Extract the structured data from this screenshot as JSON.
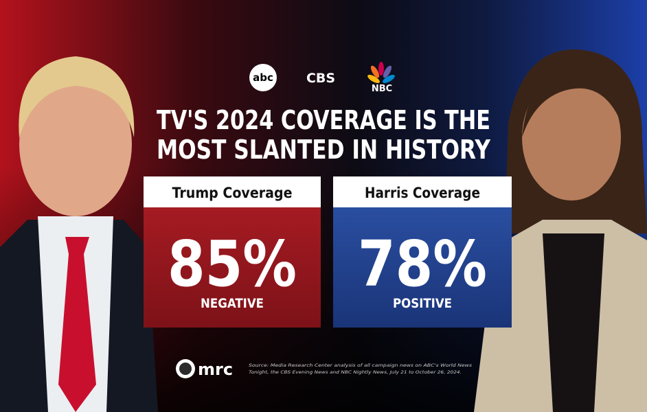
{
  "logos": [
    "abc",
    "CBS",
    "NBC"
  ],
  "title": [
    "TV'S 2024 COVERAGE IS THE",
    "MOST SLANTED IN HISTORY"
  ],
  "panels": [
    {
      "header": "Trump Coverage",
      "value": "85%",
      "label": "NEGATIVE"
    },
    {
      "header": "Harris Coverage",
      "value": "78%",
      "label": "POSITIVE"
    }
  ],
  "footer": {
    "brand": "mrc",
    "source": [
      "Source: Media Research Center analysis of all campaign news on ABC's World News",
      "Tonight, the CBS Evening News and NBC Nightly News, July 21 to October 26, 2024."
    ]
  }
}
